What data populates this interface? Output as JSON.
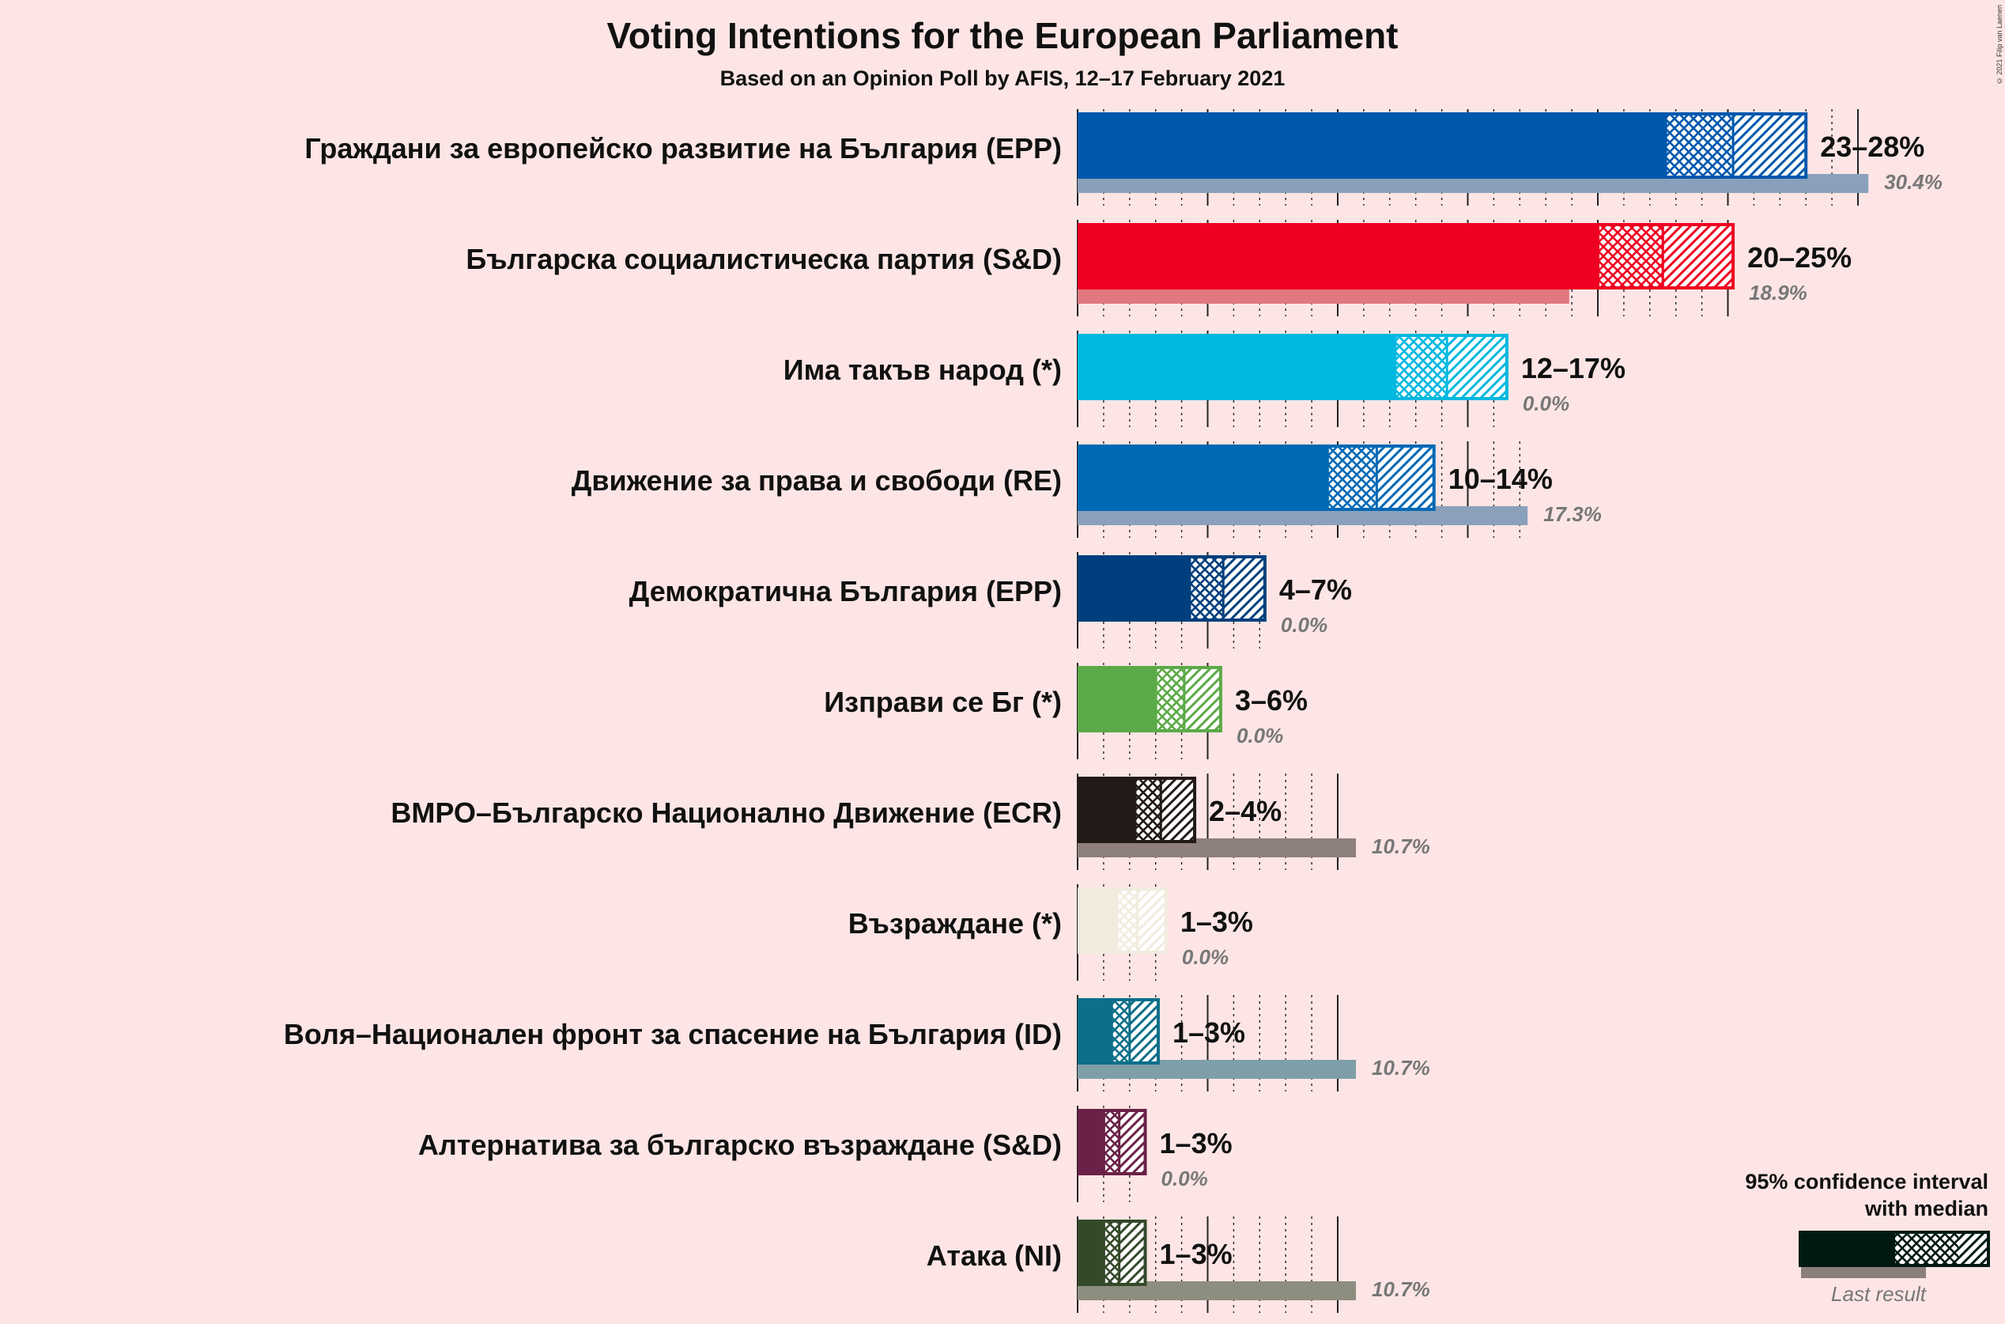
{
  "title": "Voting Intentions for the European Parliament",
  "subtitle": "Based on an Opinion Poll by AFIS, 12–17 February 2021",
  "credit": "© 2021 Filip van Laenen",
  "legend": {
    "title_line1": "95% confidence interval",
    "title_line2": "with median",
    "last_result": "Last result",
    "color": "#001a13"
  },
  "chart_data": {
    "type": "bar",
    "orientation": "horizontal",
    "x_unit": "%",
    "grid": true,
    "legend_position": "bottom-right",
    "parties": [
      {
        "name": "Граждани за европейско развитие на България (EPP)",
        "color": "#0058ad",
        "last_color": "#8aa0bb",
        "ci_low": 22.6,
        "median": 25.2,
        "ci_high": 28.0,
        "range_label": "23–28%",
        "last_result": 30.4,
        "last_label": "30.4%"
      },
      {
        "name": "Българска социалистическа партия (S&D)",
        "color": "#ef0021",
        "last_color": "#e07880",
        "ci_low": 20.0,
        "median": 22.5,
        "ci_high": 25.2,
        "range_label": "20–25%",
        "last_result": 18.9,
        "last_label": "18.9%"
      },
      {
        "name": "Има такъв народ (*)",
        "color": "#00b8e0",
        "last_color": "#7fd2e8",
        "ci_low": 12.2,
        "median": 14.2,
        "ci_high": 16.5,
        "range_label": "12–17%",
        "last_result": 0.0,
        "last_label": "0.0%"
      },
      {
        "name": "Движение за права и свободи (RE)",
        "color": "#0069b5",
        "last_color": "#8aa0bb",
        "ci_low": 9.6,
        "median": 11.5,
        "ci_high": 13.7,
        "range_label": "10–14%",
        "last_result": 17.3,
        "last_label": "17.3%"
      },
      {
        "name": "Демократична България (EPP)",
        "color": "#003f7d",
        "last_color": "#8aa0bb",
        "ci_low": 4.3,
        "median": 5.6,
        "ci_high": 7.2,
        "range_label": "4–7%",
        "last_result": 0.0,
        "last_label": "0.0%"
      },
      {
        "name": "Изправи се Бг (*)",
        "color": "#5caa47",
        "last_color": "#a5cf98",
        "ci_low": 3.0,
        "median": 4.1,
        "ci_high": 5.5,
        "range_label": "3–6%",
        "last_result": 0.0,
        "last_label": "0.0%"
      },
      {
        "name": "ВМРО–Българско Национално Движение (ECR)",
        "color": "#221a18",
        "last_color": "#8e807c",
        "ci_low": 2.2,
        "median": 3.2,
        "ci_high": 4.5,
        "range_label": "2–4%",
        "last_result": 10.7,
        "last_label": "10.7%"
      },
      {
        "name": "Възраждане (*)",
        "color": "#f2ecdf",
        "last_color": "#f2ecdf",
        "ci_low": 1.5,
        "median": 2.3,
        "ci_high": 3.4,
        "range_label": "1–3%",
        "last_result": 0.0,
        "last_label": "0.0%"
      },
      {
        "name": "Воля–Национален фронт за спасение на България (ID)",
        "color": "#0d6f89",
        "last_color": "#7f9fa8",
        "ci_low": 1.3,
        "median": 2.0,
        "ci_high": 3.1,
        "range_label": "1–3%",
        "last_result": 10.7,
        "last_label": "10.7%"
      },
      {
        "name": "Алтернатива за българско възраждане (S&D)",
        "color": "#6b2147",
        "last_color": "#b08aa0",
        "ci_low": 1.0,
        "median": 1.6,
        "ci_high": 2.6,
        "range_label": "1–3%",
        "last_result": 0.0,
        "last_label": "0.0%"
      },
      {
        "name": "Атака (NI)",
        "color": "#34492a",
        "last_color": "#8e8e80",
        "ci_low": 1.0,
        "median": 1.6,
        "ci_high": 2.6,
        "range_label": "1–3%",
        "last_result": 10.7,
        "last_label": "10.7%"
      }
    ]
  }
}
